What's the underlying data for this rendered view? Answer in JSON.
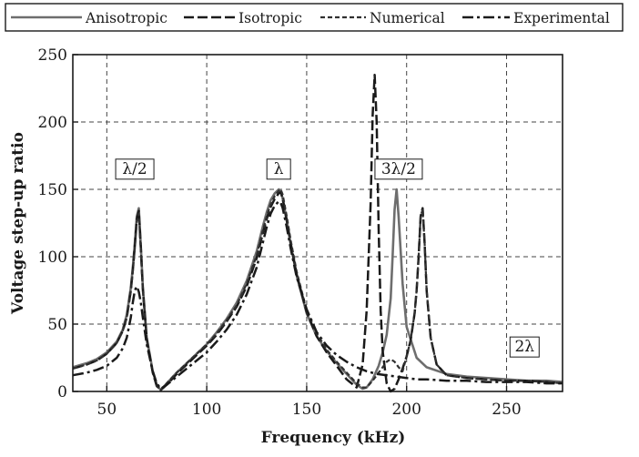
{
  "chart_data": {
    "type": "line",
    "title": "",
    "xlabel": "Frequency (kHz)",
    "ylabel": "Voltage step-up ratio",
    "xlim": [
      33,
      278
    ],
    "ylim": [
      0,
      250
    ],
    "xticks": [
      50,
      100,
      150,
      200,
      250
    ],
    "yticks": [
      0,
      50,
      100,
      150,
      200,
      250
    ],
    "grid": true,
    "legend_position": "top",
    "series": [
      {
        "name": "Anisotropic",
        "style": "solid",
        "color": "#6e6e6e",
        "x": [
          33,
          40,
          45,
          50,
          55,
          58,
          60,
          62,
          63,
          64,
          65,
          66,
          67,
          68,
          70,
          73,
          75,
          77,
          80,
          85,
          90,
          95,
          100,
          105,
          110,
          115,
          120,
          125,
          128,
          130,
          132,
          134,
          136,
          137,
          138,
          140,
          142,
          145,
          150,
          155,
          160,
          165,
          170,
          175,
          178,
          180,
          183,
          186,
          188,
          190,
          192,
          193,
          194,
          195,
          196,
          198,
          200,
          205,
          210,
          220,
          230,
          240,
          250,
          260,
          270,
          278
        ],
        "y": [
          18,
          21,
          24,
          29,
          37,
          46,
          57,
          77,
          92,
          110,
          130,
          136,
          108,
          78,
          40,
          15,
          5,
          1,
          6,
          14,
          21,
          28,
          35,
          44,
          54,
          66,
          82,
          104,
          122,
          133,
          142,
          147,
          150,
          149,
          143,
          127,
          109,
          86,
          58,
          41,
          30,
          21,
          13,
          5,
          2,
          3,
          9,
          19,
          29,
          42,
          69,
          100,
          135,
          150,
          130,
          80,
          48,
          25,
          18,
          13,
          11,
          10,
          9,
          8,
          8,
          7
        ]
      },
      {
        "name": "Isotropic",
        "style": "dash",
        "color": "#1a1a1a",
        "x": [
          33,
          40,
          45,
          50,
          55,
          58,
          60,
          62,
          63,
          64,
          65,
          66,
          67,
          68,
          70,
          73,
          75,
          77,
          80,
          85,
          90,
          95,
          100,
          105,
          110,
          115,
          120,
          125,
          128,
          130,
          132,
          134,
          136,
          137,
          138,
          140,
          142,
          145,
          150,
          155,
          160,
          165,
          170,
          175,
          178,
          180,
          182,
          183,
          184,
          185,
          186,
          187,
          188,
          190,
          192,
          194,
          196,
          198,
          200,
          202,
          204,
          205,
          206,
          207,
          208,
          209,
          210,
          212,
          215,
          220,
          230,
          240,
          250,
          260,
          270,
          278
        ],
        "y": [
          17,
          20,
          23,
          28,
          36,
          45,
          55,
          75,
          90,
          108,
          128,
          134,
          107,
          76,
          39,
          14,
          4,
          1,
          5,
          13,
          20,
          27,
          34,
          42,
          52,
          63,
          78,
          99,
          117,
          128,
          137,
          143,
          147,
          148,
          143,
          127,
          110,
          87,
          59,
          41,
          29,
          19,
          9,
          3,
          20,
          60,
          140,
          205,
          235,
          200,
          120,
          60,
          30,
          6,
          0,
          2,
          9,
          17,
          26,
          38,
          58,
          75,
          100,
          130,
          136,
          110,
          75,
          40,
          20,
          12,
          10,
          9,
          8,
          8,
          7,
          6
        ]
      },
      {
        "name": "Numerical",
        "style": "short-dash",
        "color": "#303030",
        "x": [
          33,
          40,
          45,
          50,
          55,
          58,
          60,
          62,
          63,
          64,
          65,
          66,
          67,
          68,
          70,
          73,
          75,
          77,
          80,
          85,
          90,
          95,
          100,
          105,
          110,
          115,
          120,
          125,
          128,
          130,
          132,
          134,
          136,
          137,
          138,
          140,
          142,
          145,
          150,
          155,
          160,
          165,
          170,
          175,
          178,
          180,
          183,
          186,
          188,
          190,
          192,
          194,
          196,
          198,
          200,
          202,
          204,
          205,
          206,
          207,
          208,
          209,
          210,
          212,
          215,
          220,
          230,
          240,
          250,
          260,
          270,
          278
        ],
        "y": [
          17,
          20,
          23,
          28,
          36,
          45,
          55,
          74,
          89,
          106,
          126,
          132,
          105,
          75,
          38,
          14,
          4,
          1,
          6,
          14,
          21,
          28,
          35,
          43,
          53,
          64,
          80,
          101,
          119,
          130,
          139,
          145,
          149,
          150,
          146,
          130,
          112,
          89,
          60,
          43,
          31,
          22,
          14,
          6,
          3,
          3,
          8,
          14,
          18,
          22,
          24,
          22,
          18,
          15,
          26,
          38,
          58,
          75,
          100,
          130,
          135,
          110,
          75,
          40,
          20,
          12,
          10,
          9,
          8,
          8,
          7,
          6
        ]
      },
      {
        "name": "Experimental",
        "style": "dash-dot",
        "color": "#1a1a1a",
        "x": [
          33,
          40,
          45,
          50,
          55,
          58,
          60,
          62,
          63,
          64,
          65,
          66,
          67,
          68,
          70,
          73,
          75,
          77,
          80,
          85,
          90,
          95,
          100,
          105,
          110,
          115,
          120,
          125,
          128,
          130,
          132,
          134,
          136,
          137,
          138,
          140,
          142,
          145,
          150,
          155,
          160,
          165,
          170,
          175,
          180,
          185,
          190,
          195,
          200,
          205,
          210,
          220,
          230,
          240,
          250,
          260,
          270,
          278
        ],
        "y": [
          12,
          14,
          16,
          19,
          25,
          32,
          40,
          55,
          66,
          75,
          78,
          74,
          66,
          55,
          35,
          15,
          6,
          2,
          5,
          11,
          17,
          23,
          29,
          37,
          46,
          57,
          72,
          92,
          110,
          122,
          132,
          138,
          141,
          140,
          136,
          122,
          106,
          85,
          61,
          44,
          34,
          27,
          22,
          18,
          15,
          13,
          12,
          11,
          10,
          9,
          9,
          8,
          8,
          7,
          7,
          7,
          6,
          6
        ]
      }
    ],
    "annotations": [
      {
        "text": "λ/2",
        "x": 64,
        "y": 165
      },
      {
        "text": "λ",
        "x": 136,
        "y": 165
      },
      {
        "text": "3λ/2",
        "x": 196,
        "y": 165
      },
      {
        "text": "2λ",
        "x": 259,
        "y": 33
      }
    ]
  }
}
